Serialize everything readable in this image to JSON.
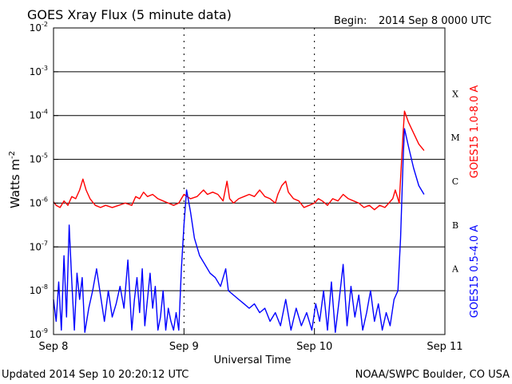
{
  "header": {
    "title": "GOES Xray Flux (5 minute data)",
    "begin_label": "Begin:",
    "begin_value": "2014 Sep 8 0000 UTC"
  },
  "footer": {
    "updated": "Updated 2014 Sep 10 20:20:12 UTC",
    "source": "NOAA/SWPC Boulder, CO USA"
  },
  "colors": {
    "long": "#ff0000",
    "short": "#0000ff",
    "grid": "#000000"
  },
  "chart_data": {
    "type": "line",
    "xlabel": "Universal Time",
    "ylabel_base": "Watts m",
    "ylabel_exp": "-2",
    "x_ticks": [
      "Sep 8",
      "Sep 9",
      "Sep 10",
      "Sep 11"
    ],
    "x_range_days": [
      0,
      3
    ],
    "y_scale": "log",
    "y_ticks": [
      {
        "base": "10",
        "exp": "-2"
      },
      {
        "base": "10",
        "exp": "-3"
      },
      {
        "base": "10",
        "exp": "-4"
      },
      {
        "base": "10",
        "exp": "-5"
      },
      {
        "base": "10",
        "exp": "-6"
      },
      {
        "base": "10",
        "exp": "-7"
      },
      {
        "base": "10",
        "exp": "-8"
      },
      {
        "base": "10",
        "exp": "-9"
      }
    ],
    "y_log_range": [
      -9,
      -2
    ],
    "flare_classes": [
      {
        "label": "X",
        "level": -4
      },
      {
        "label": "M",
        "level": -5
      },
      {
        "label": "C",
        "level": -6
      },
      {
        "label": "B",
        "level": -7
      },
      {
        "label": "A",
        "level": -8
      }
    ],
    "grid": "horizontal",
    "series": [
      {
        "name": "GOES15 1.0-8.0 A",
        "log_values": [
          [
            0.0,
            -5.97
          ],
          [
            0.02,
            -6.05
          ],
          [
            0.05,
            -6.1
          ],
          [
            0.08,
            -5.95
          ],
          [
            0.11,
            -6.05
          ],
          [
            0.14,
            -5.85
          ],
          [
            0.17,
            -5.9
          ],
          [
            0.2,
            -5.7
          ],
          [
            0.225,
            -5.45
          ],
          [
            0.25,
            -5.7
          ],
          [
            0.28,
            -5.9
          ],
          [
            0.32,
            -6.05
          ],
          [
            0.36,
            -6.1
          ],
          [
            0.4,
            -6.05
          ],
          [
            0.45,
            -6.1
          ],
          [
            0.5,
            -6.05
          ],
          [
            0.55,
            -6.0
          ],
          [
            0.6,
            -6.05
          ],
          [
            0.63,
            -5.85
          ],
          [
            0.66,
            -5.9
          ],
          [
            0.69,
            -5.75
          ],
          [
            0.72,
            -5.85
          ],
          [
            0.76,
            -5.8
          ],
          [
            0.8,
            -5.9
          ],
          [
            0.84,
            -5.95
          ],
          [
            0.88,
            -6.0
          ],
          [
            0.92,
            -6.05
          ],
          [
            0.96,
            -6.0
          ],
          [
            1.0,
            -5.8
          ],
          [
            1.05,
            -5.9
          ],
          [
            1.1,
            -5.85
          ],
          [
            1.15,
            -5.7
          ],
          [
            1.18,
            -5.8
          ],
          [
            1.22,
            -5.75
          ],
          [
            1.26,
            -5.8
          ],
          [
            1.3,
            -5.95
          ],
          [
            1.33,
            -5.5
          ],
          [
            1.35,
            -5.9
          ],
          [
            1.38,
            -6.0
          ],
          [
            1.42,
            -5.9
          ],
          [
            1.46,
            -5.85
          ],
          [
            1.5,
            -5.8
          ],
          [
            1.54,
            -5.85
          ],
          [
            1.58,
            -5.7
          ],
          [
            1.62,
            -5.85
          ],
          [
            1.66,
            -5.9
          ],
          [
            1.7,
            -6.0
          ],
          [
            1.72,
            -5.8
          ],
          [
            1.75,
            -5.6
          ],
          [
            1.78,
            -5.5
          ],
          [
            1.8,
            -5.75
          ],
          [
            1.84,
            -5.9
          ],
          [
            1.88,
            -5.95
          ],
          [
            1.92,
            -6.1
          ],
          [
            1.96,
            -6.05
          ],
          [
            2.0,
            -6.0
          ],
          [
            2.03,
            -5.9
          ],
          [
            2.06,
            -5.95
          ],
          [
            2.1,
            -6.05
          ],
          [
            2.14,
            -5.9
          ],
          [
            2.18,
            -5.95
          ],
          [
            2.22,
            -5.8
          ],
          [
            2.26,
            -5.9
          ],
          [
            2.3,
            -5.95
          ],
          [
            2.34,
            -6.0
          ],
          [
            2.38,
            -6.1
          ],
          [
            2.42,
            -6.05
          ],
          [
            2.46,
            -6.15
          ],
          [
            2.5,
            -6.05
          ],
          [
            2.54,
            -6.1
          ],
          [
            2.57,
            -6.0
          ],
          [
            2.6,
            -5.9
          ],
          [
            2.62,
            -5.7
          ],
          [
            2.65,
            -6.0
          ],
          [
            2.68,
            -4.4
          ],
          [
            2.69,
            -3.9
          ],
          [
            2.72,
            -4.15
          ],
          [
            2.76,
            -4.4
          ],
          [
            2.8,
            -4.65
          ],
          [
            2.84,
            -4.8
          ]
        ]
      },
      {
        "name": "GOES15 0.5-4.0 A",
        "log_values": [
          [
            0.0,
            -8.2
          ],
          [
            0.02,
            -8.7
          ],
          [
            0.04,
            -7.8
          ],
          [
            0.06,
            -8.9
          ],
          [
            0.08,
            -7.2
          ],
          [
            0.1,
            -8.6
          ],
          [
            0.12,
            -6.5
          ],
          [
            0.14,
            -7.8
          ],
          [
            0.16,
            -8.9
          ],
          [
            0.18,
            -7.6
          ],
          [
            0.2,
            -8.2
          ],
          [
            0.22,
            -7.7
          ],
          [
            0.24,
            -8.95
          ],
          [
            0.27,
            -8.4
          ],
          [
            0.3,
            -8.0
          ],
          [
            0.33,
            -7.5
          ],
          [
            0.36,
            -8.1
          ],
          [
            0.39,
            -8.7
          ],
          [
            0.42,
            -8.0
          ],
          [
            0.45,
            -8.6
          ],
          [
            0.48,
            -8.3
          ],
          [
            0.51,
            -7.9
          ],
          [
            0.54,
            -8.4
          ],
          [
            0.57,
            -7.3
          ],
          [
            0.6,
            -8.9
          ],
          [
            0.62,
            -8.2
          ],
          [
            0.64,
            -7.7
          ],
          [
            0.66,
            -8.5
          ],
          [
            0.68,
            -7.5
          ],
          [
            0.7,
            -8.8
          ],
          [
            0.72,
            -8.2
          ],
          [
            0.74,
            -7.6
          ],
          [
            0.76,
            -8.4
          ],
          [
            0.78,
            -7.9
          ],
          [
            0.8,
            -8.9
          ],
          [
            0.82,
            -8.6
          ],
          [
            0.84,
            -8.0
          ],
          [
            0.86,
            -8.9
          ],
          [
            0.88,
            -8.4
          ],
          [
            0.9,
            -8.7
          ],
          [
            0.92,
            -8.9
          ],
          [
            0.94,
            -8.5
          ],
          [
            0.96,
            -8.9
          ],
          [
            0.98,
            -7.5
          ],
          [
            1.0,
            -6.5
          ],
          [
            1.02,
            -5.7
          ],
          [
            1.05,
            -6.2
          ],
          [
            1.08,
            -6.8
          ],
          [
            1.12,
            -7.2
          ],
          [
            1.16,
            -7.4
          ],
          [
            1.2,
            -7.6
          ],
          [
            1.24,
            -7.7
          ],
          [
            1.28,
            -7.9
          ],
          [
            1.32,
            -7.5
          ],
          [
            1.34,
            -8.0
          ],
          [
            1.38,
            -8.1
          ],
          [
            1.42,
            -8.2
          ],
          [
            1.46,
            -8.3
          ],
          [
            1.5,
            -8.4
          ],
          [
            1.54,
            -8.3
          ],
          [
            1.58,
            -8.5
          ],
          [
            1.62,
            -8.4
          ],
          [
            1.66,
            -8.7
          ],
          [
            1.7,
            -8.5
          ],
          [
            1.74,
            -8.8
          ],
          [
            1.78,
            -8.2
          ],
          [
            1.82,
            -8.9
          ],
          [
            1.86,
            -8.4
          ],
          [
            1.9,
            -8.8
          ],
          [
            1.94,
            -8.5
          ],
          [
            1.98,
            -8.9
          ],
          [
            2.01,
            -8.3
          ],
          [
            2.04,
            -8.7
          ],
          [
            2.07,
            -8.0
          ],
          [
            2.1,
            -8.9
          ],
          [
            2.13,
            -7.8
          ],
          [
            2.16,
            -8.95
          ],
          [
            2.19,
            -8.2
          ],
          [
            2.22,
            -7.4
          ],
          [
            2.25,
            -8.8
          ],
          [
            2.28,
            -7.9
          ],
          [
            2.31,
            -8.6
          ],
          [
            2.34,
            -8.1
          ],
          [
            2.37,
            -8.9
          ],
          [
            2.4,
            -8.5
          ],
          [
            2.43,
            -8.0
          ],
          [
            2.46,
            -8.7
          ],
          [
            2.49,
            -8.3
          ],
          [
            2.52,
            -8.9
          ],
          [
            2.55,
            -8.5
          ],
          [
            2.58,
            -8.8
          ],
          [
            2.61,
            -8.2
          ],
          [
            2.64,
            -8.0
          ],
          [
            2.66,
            -6.8
          ],
          [
            2.68,
            -5.0
          ],
          [
            2.69,
            -4.3
          ],
          [
            2.72,
            -4.7
          ],
          [
            2.76,
            -5.2
          ],
          [
            2.8,
            -5.6
          ],
          [
            2.84,
            -5.8
          ]
        ]
      }
    ]
  }
}
